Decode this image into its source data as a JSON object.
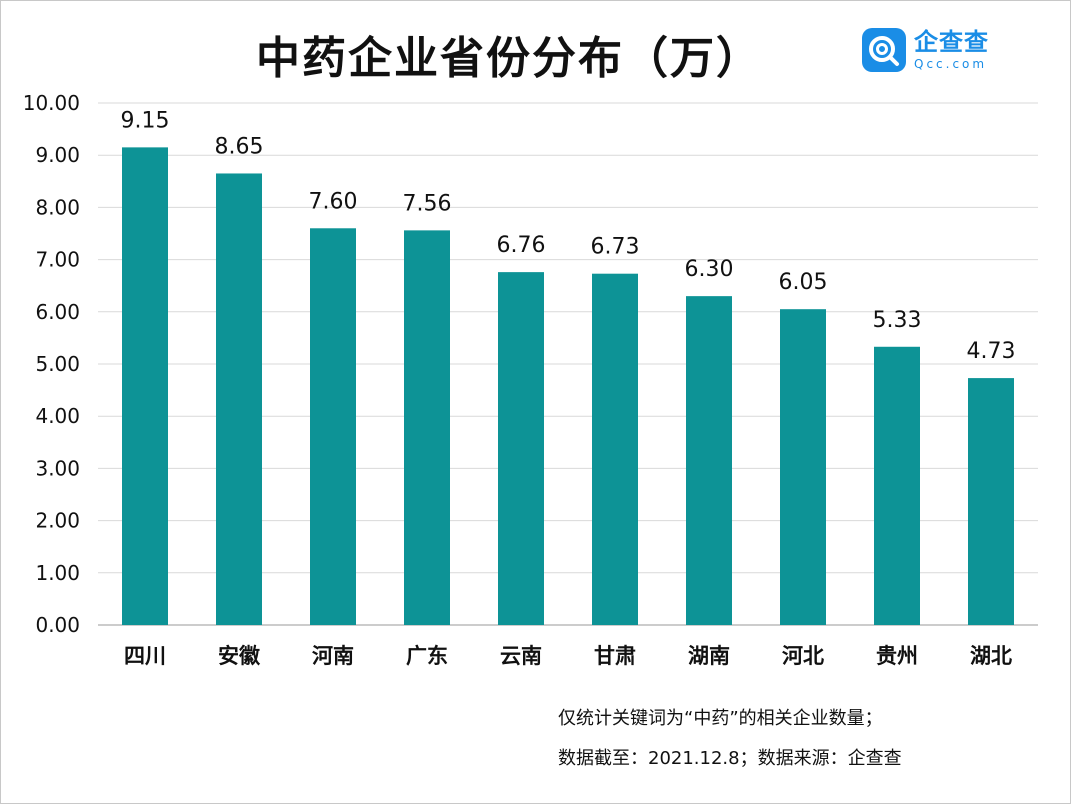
{
  "title": "中药企业省份分布（万）",
  "logo": {
    "cn": "企查查",
    "en": "Qcc.com",
    "icon": "qcc-logo-icon",
    "color": "#1a8de6"
  },
  "chart_data": {
    "type": "bar",
    "title": "中药企业省份分布（万）",
    "categories": [
      "四川",
      "安徽",
      "河南",
      "广东",
      "云南",
      "甘肃",
      "湖南",
      "河北",
      "贵州",
      "湖北"
    ],
    "values": [
      9.15,
      8.65,
      7.6,
      7.56,
      6.76,
      6.73,
      6.3,
      6.05,
      5.33,
      4.73
    ],
    "value_labels": [
      "9.15",
      "8.65",
      "7.60",
      "7.56",
      "6.76",
      "6.73",
      "6.30",
      "6.05",
      "5.33",
      "4.73"
    ],
    "yticks": [
      "0.00",
      "1.00",
      "2.00",
      "3.00",
      "4.00",
      "5.00",
      "6.00",
      "7.00",
      "8.00",
      "9.00",
      "10.00"
    ],
    "ylim": [
      0,
      10
    ],
    "xlabel": "",
    "ylabel": "",
    "grid": true,
    "bar_color": "#0d9396"
  },
  "notes": {
    "line1": "仅统计关键词为“中药”的相关企业数量；",
    "line2": "数据截至：2021.12.8；数据来源：企查查"
  }
}
